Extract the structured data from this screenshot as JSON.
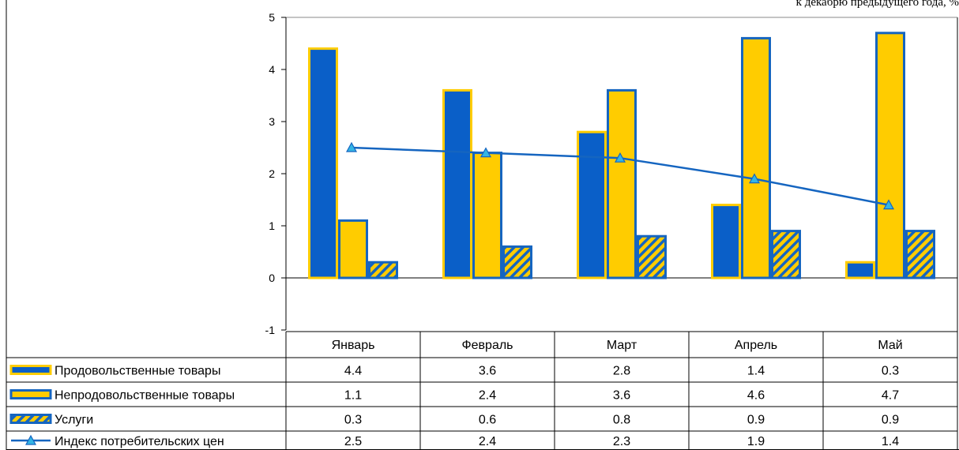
{
  "chart_data": {
    "type": "bar",
    "title": "",
    "note": "к декабрю предыдущего года, %",
    "xlabel": "",
    "ylabel": "",
    "ylim": [
      -1,
      5
    ],
    "yticks": [
      "-1",
      "0",
      "1",
      "2",
      "3",
      "4",
      "5"
    ],
    "categories": [
      "Январь",
      "Февраль",
      "Март",
      "Апрель",
      "Май"
    ],
    "legend_placement": "data-table",
    "series": [
      {
        "name": "Продовольственные товары",
        "kind": "bar",
        "fill": "#0a5fc8",
        "stroke": "#ffcc00",
        "values": [
          4.4,
          3.6,
          2.8,
          1.4,
          0.3
        ]
      },
      {
        "name": "Непродовольственные товары",
        "kind": "bar",
        "fill": "#ffcc00",
        "stroke": "#1565c0",
        "values": [
          1.1,
          2.4,
          3.6,
          4.6,
          4.7
        ]
      },
      {
        "name": "Услуги",
        "kind": "bar-hatched",
        "fill": "#ffcc00",
        "stroke": "#1565c0",
        "values": [
          0.3,
          0.6,
          0.8,
          0.9,
          0.9
        ]
      },
      {
        "name": "Индекс потребительских цен",
        "kind": "line",
        "color": "#1565c0",
        "marker": "#33b5e5",
        "values": [
          2.5,
          2.4,
          2.3,
          1.9,
          1.4
        ]
      }
    ],
    "table_values": [
      [
        "4.4",
        "3.6",
        "2.8",
        "1.4",
        "0.3"
      ],
      [
        "1.1",
        "2.4",
        "3.6",
        "4.6",
        "4.7"
      ],
      [
        "0.3",
        "0.6",
        "0.8",
        "0.9",
        "0.9"
      ],
      [
        "2.5",
        "2.4",
        "2.3",
        "1.9",
        "1.4"
      ]
    ]
  }
}
